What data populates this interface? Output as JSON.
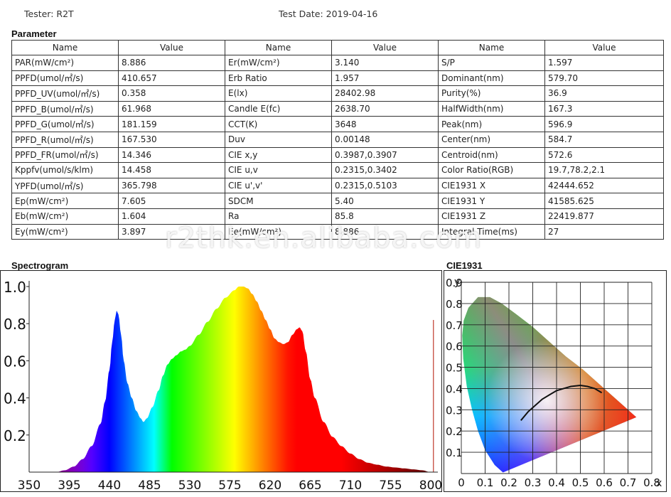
{
  "header": {
    "tester_label": "Tester: R2T",
    "test_date_label": "Test Date: 2019-04-16"
  },
  "parameter": {
    "title": "Parameter",
    "columns": [
      "Name",
      "Value",
      "Name",
      "Value",
      "Name",
      "Value"
    ],
    "rows": [
      [
        "PAR(mW/cm²)",
        "8.886",
        "Er(mW/cm²)",
        "3.140",
        "S/P",
        "1.597"
      ],
      [
        "PPFD(umol/㎡/s)",
        "410.657",
        "Erb Ratio",
        "1.957",
        "Dominant(nm)",
        "579.70"
      ],
      [
        "PPFD_UV(umol/㎡/s)",
        "0.358",
        "E(lx)",
        "28402.98",
        "Purity(%)",
        "36.9"
      ],
      [
        "PPFD_B(umol/㎡/s)",
        "61.968",
        "Candle E(fc)",
        "2638.70",
        "HalfWidth(nm)",
        "167.3"
      ],
      [
        "PPFD_G(umol/㎡/s)",
        "181.159",
        "CCT(K)",
        "3648",
        "Peak(nm)",
        "596.9"
      ],
      [
        "PPFD_R(umol/㎡/s)",
        "167.530",
        "Duv",
        "0.00148",
        "Center(nm)",
        "584.7"
      ],
      [
        "PPFD_FR(umol/㎡/s)",
        "14.346",
        "CIE x,y",
        "0.3987,0.3907",
        "Centroid(nm)",
        "572.6"
      ],
      [
        "Kppfv(umol/s/klm)",
        "14.458",
        "CIE u,v",
        "0.2315,0.3402",
        "Color Ratio(RGB)",
        "19.7,78.2,2.1"
      ],
      [
        "YPFD(umol/㎡/s)",
        "365.798",
        "CIE u',v'",
        "0.2315,0.5103",
        "CIE1931 X",
        "42444.652"
      ],
      [
        "Ep(mW/cm²)",
        "7.605",
        "SDCM",
        "5.40",
        "CIE1931 Y",
        "41585.625"
      ],
      [
        "Eb(mW/cm²)",
        "1.604",
        "Ra",
        "85.8",
        "CIE1931 Z",
        "22419.877"
      ],
      [
        "Ey(mW/cm²)",
        "3.897",
        "Ee(mW/cm²)",
        "8.886",
        "Integral Time(ms)",
        "27"
      ]
    ]
  },
  "watermark": "r2thk.en.alibaba.com",
  "chart_data": [
    {
      "type": "area",
      "title": "Spectrogram",
      "xlabel": "",
      "ylabel": "",
      "xlim": [
        350,
        800
      ],
      "ylim": [
        0,
        1.0
      ],
      "xticks": [
        "350",
        "395",
        "440",
        "485",
        "530",
        "575",
        "620",
        "665",
        "710",
        "755",
        "800"
      ],
      "yticks": [
        "1.0",
        "0.8",
        "0.6",
        "0.4",
        "0.2"
      ],
      "grid": false,
      "x": [
        380,
        390,
        400,
        410,
        420,
        430,
        435,
        440,
        443,
        446,
        448,
        450,
        453,
        456,
        460,
        465,
        470,
        475,
        478,
        482,
        488,
        495,
        500,
        505,
        510,
        515,
        520,
        525,
        530,
        540,
        550,
        560,
        570,
        580,
        585,
        590,
        595,
        600,
        605,
        610,
        615,
        620,
        625,
        630,
        635,
        640,
        645,
        650,
        653,
        656,
        660,
        665,
        670,
        680,
        690,
        700,
        710,
        720,
        730,
        740,
        750,
        760,
        770,
        780,
        790,
        800
      ],
      "values": [
        0.0,
        0.01,
        0.03,
        0.07,
        0.14,
        0.26,
        0.38,
        0.55,
        0.7,
        0.82,
        0.87,
        0.85,
        0.74,
        0.6,
        0.48,
        0.4,
        0.33,
        0.29,
        0.27,
        0.29,
        0.35,
        0.44,
        0.52,
        0.58,
        0.61,
        0.63,
        0.65,
        0.66,
        0.68,
        0.74,
        0.81,
        0.88,
        0.94,
        0.98,
        1.0,
        1.0,
        0.99,
        0.96,
        0.92,
        0.87,
        0.82,
        0.77,
        0.72,
        0.7,
        0.69,
        0.7,
        0.74,
        0.77,
        0.78,
        0.76,
        0.65,
        0.5,
        0.4,
        0.27,
        0.19,
        0.14,
        0.1,
        0.07,
        0.05,
        0.04,
        0.03,
        0.025,
        0.02,
        0.015,
        0.01,
        0.0
      ],
      "marker_line_x": 803,
      "marker_line_y": 0.82
    },
    {
      "type": "scatter",
      "title": "CIE1931",
      "xlabel": "x",
      "ylabel": "y",
      "xlim": [
        0,
        0.8
      ],
      "ylim": [
        0,
        0.9
      ],
      "xticks": [
        "0",
        "0.1",
        "0.2",
        "0.3",
        "0.4",
        "0.5",
        "0.6",
        "0.7",
        "0.8"
      ],
      "yticks": [
        "0.9",
        "0.8",
        "0.7",
        "0.6",
        "0.5",
        "0.4",
        "0.3",
        "0.2",
        "0.1"
      ],
      "grid": true,
      "locus": [
        [
          0.175,
          0.005
        ],
        [
          0.17,
          0.01
        ],
        [
          0.14,
          0.04
        ],
        [
          0.1,
          0.11
        ],
        [
          0.07,
          0.2
        ],
        [
          0.045,
          0.3
        ],
        [
          0.023,
          0.41
        ],
        [
          0.008,
          0.54
        ],
        [
          0.004,
          0.65
        ],
        [
          0.01,
          0.72
        ],
        [
          0.03,
          0.78
        ],
        [
          0.07,
          0.83
        ],
        [
          0.12,
          0.83
        ],
        [
          0.17,
          0.8
        ],
        [
          0.23,
          0.75
        ],
        [
          0.3,
          0.69
        ],
        [
          0.37,
          0.62
        ],
        [
          0.44,
          0.55
        ],
        [
          0.51,
          0.49
        ],
        [
          0.58,
          0.42
        ],
        [
          0.64,
          0.36
        ],
        [
          0.7,
          0.3
        ],
        [
          0.735,
          0.265
        ]
      ],
      "planckian": [
        [
          0.25,
          0.25
        ],
        [
          0.28,
          0.29
        ],
        [
          0.31,
          0.32
        ],
        [
          0.34,
          0.35
        ],
        [
          0.37,
          0.37
        ],
        [
          0.4,
          0.39
        ],
        [
          0.43,
          0.4
        ],
        [
          0.46,
          0.41
        ],
        [
          0.5,
          0.415
        ],
        [
          0.53,
          0.41
        ],
        [
          0.56,
          0.4
        ],
        [
          0.59,
          0.38
        ]
      ]
    }
  ]
}
